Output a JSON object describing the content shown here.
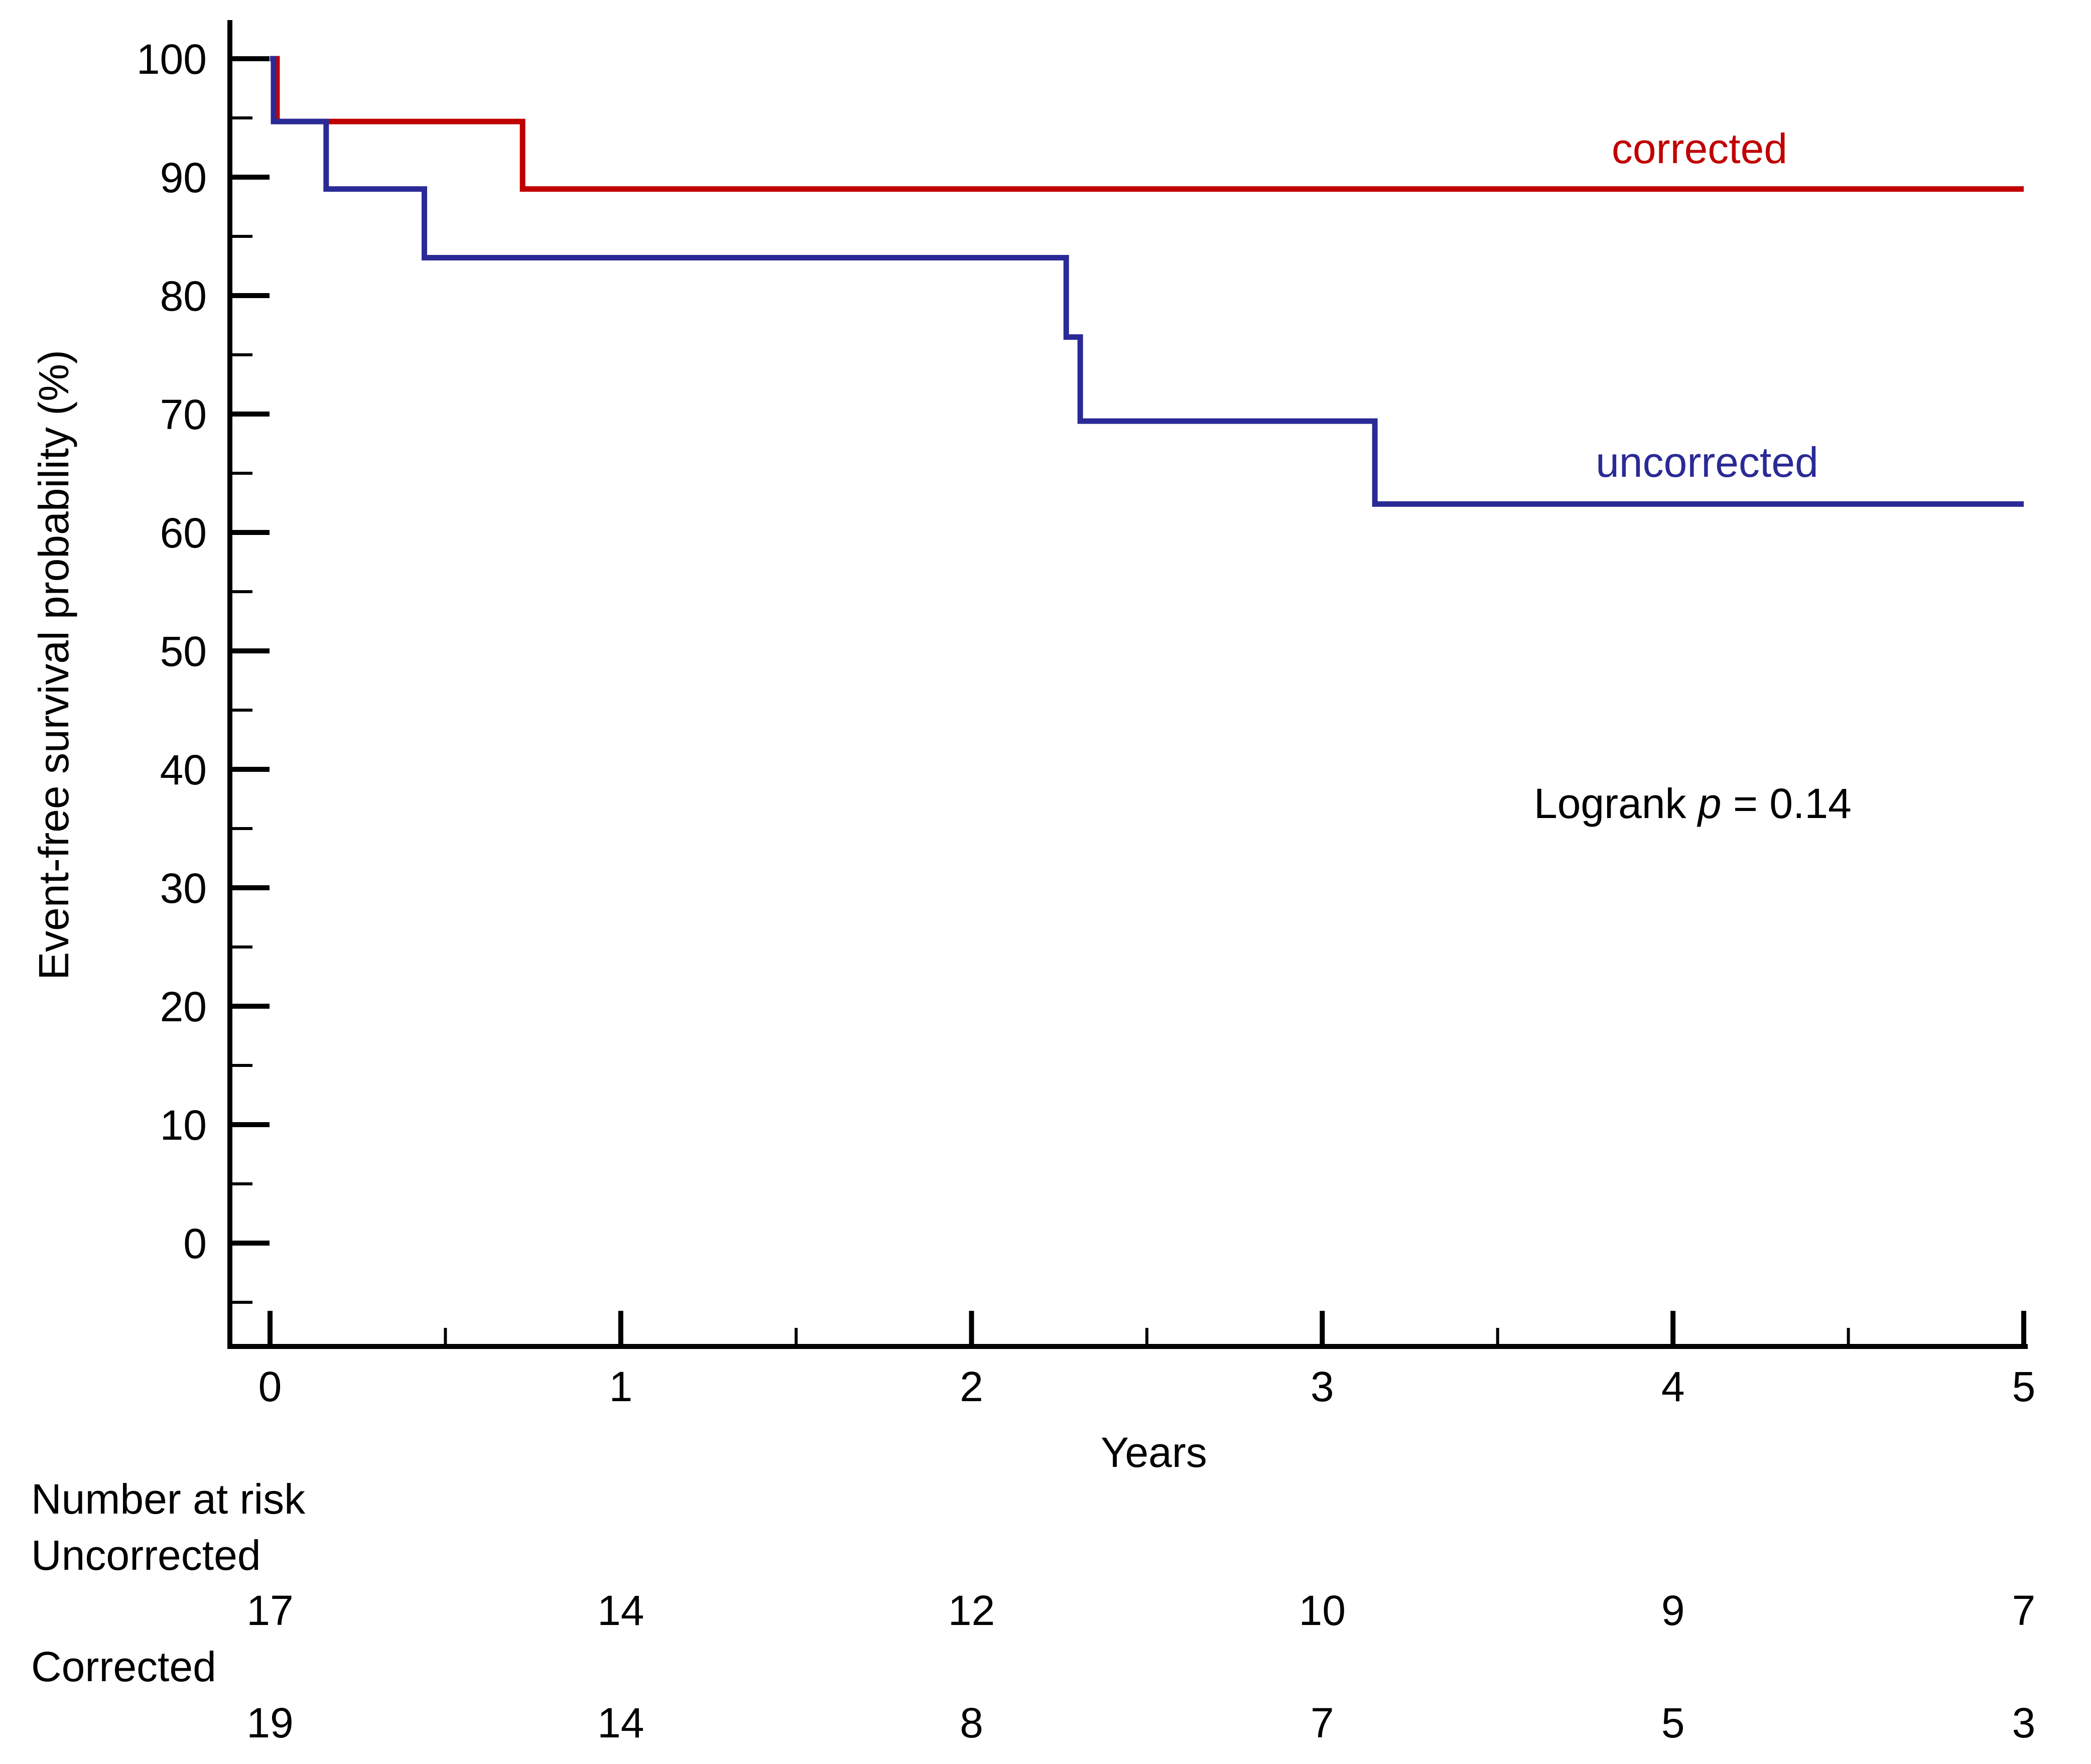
{
  "chart_data": {
    "type": "line",
    "subtype": "kaplan-meier step",
    "title": "",
    "xlabel": "Years",
    "ylabel": "Event-free survival probability (%)",
    "xlim": [
      0,
      5
    ],
    "ylim": [
      -5,
      100
    ],
    "x_ticks": [
      "0",
      "1",
      "2",
      "3",
      "4",
      "5"
    ],
    "y_ticks": [
      "0",
      "10",
      "20",
      "30",
      "40",
      "50",
      "60",
      "70",
      "80",
      "90",
      "100"
    ],
    "grid": false,
    "series": [
      {
        "name": "corrected",
        "color": "#c00000",
        "steps": [
          [
            0,
            100
          ],
          [
            0.02,
            94.7
          ],
          [
            0.72,
            89.0
          ],
          [
            5.0,
            89.0
          ]
        ]
      },
      {
        "name": "uncorrected",
        "color": "#2a2a96",
        "steps": [
          [
            0,
            100
          ],
          [
            0.01,
            94.7
          ],
          [
            0.16,
            89.0
          ],
          [
            0.44,
            83.2
          ],
          [
            2.27,
            76.5
          ],
          [
            2.31,
            69.4
          ],
          [
            3.15,
            62.4
          ],
          [
            5.0,
            62.4
          ]
        ]
      }
    ],
    "annotation": {
      "prefix": "Logrank ",
      "italic": "p",
      "suffix": " = 0.14"
    },
    "risk_table": {
      "title": "Number at risk",
      "groups": [
        {
          "name": "Uncorrected",
          "values": [
            "17",
            "14",
            "12",
            "10",
            "9",
            "7"
          ]
        },
        {
          "name": "Corrected",
          "values": [
            "19",
            "14",
            "8",
            "7",
            "5",
            "3"
          ]
        }
      ]
    }
  }
}
